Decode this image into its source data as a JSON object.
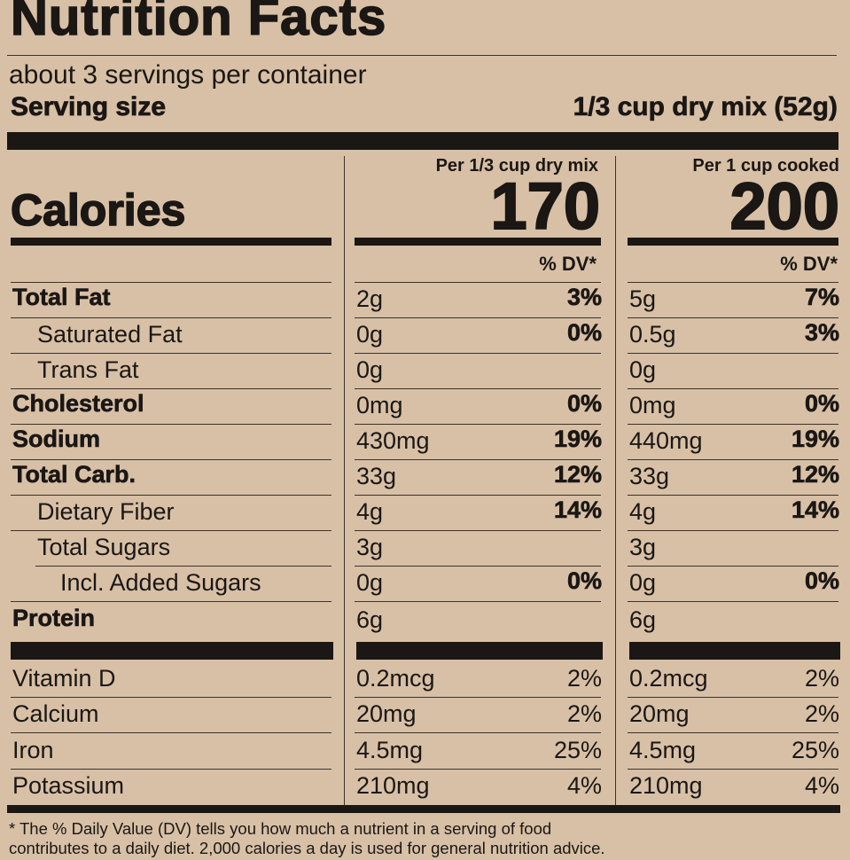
{
  "header": {
    "title": "Nutrition Facts",
    "servings": "about 3 servings per container",
    "serving_size_label": "Serving size",
    "serving_size_value": "1/3 cup dry mix (52g)"
  },
  "columns": {
    "dry_header": "Per 1/3 cup dry mix",
    "cooked_header": "Per 1 cup cooked",
    "calories_label": "Calories",
    "calories_dry": "170",
    "calories_cooked": "200",
    "dv_header": "% DV*"
  },
  "nutrients": [
    {
      "label": "Total Fat",
      "dry_amount": "2g",
      "dry_dv": "3%",
      "cooked_amount": "5g",
      "cooked_dv": "7%"
    },
    {
      "label": "Saturated Fat",
      "dry_amount": "0g",
      "dry_dv": "0%",
      "cooked_amount": "0.5g",
      "cooked_dv": "3%"
    },
    {
      "label": "Trans Fat",
      "dry_amount": "0g",
      "dry_dv": "",
      "cooked_amount": "0g",
      "cooked_dv": ""
    },
    {
      "label": "Cholesterol",
      "dry_amount": "0mg",
      "dry_dv": "0%",
      "cooked_amount": "0mg",
      "cooked_dv": "0%"
    },
    {
      "label": "Sodium",
      "dry_amount": "430mg",
      "dry_dv": "19%",
      "cooked_amount": "440mg",
      "cooked_dv": "19%"
    },
    {
      "label": "Total Carb.",
      "dry_amount": "33g",
      "dry_dv": "12%",
      "cooked_amount": "33g",
      "cooked_dv": "12%"
    },
    {
      "label": "Dietary Fiber",
      "dry_amount": "4g",
      "dry_dv": "14%",
      "cooked_amount": "4g",
      "cooked_dv": "14%"
    },
    {
      "label": "Total Sugars",
      "dry_amount": "3g",
      "dry_dv": "",
      "cooked_amount": "3g",
      "cooked_dv": ""
    },
    {
      "label": "Incl. Added Sugars",
      "dry_amount": "0g",
      "dry_dv": "0%",
      "cooked_amount": "0g",
      "cooked_dv": "0%"
    },
    {
      "label": "Protein",
      "dry_amount": "6g",
      "dry_dv": "",
      "cooked_amount": "6g",
      "cooked_dv": ""
    }
  ],
  "vitamins": [
    {
      "label": "Vitamin D",
      "dry_amount": "0.2mcg",
      "dry_dv": "2%",
      "cooked_amount": "0.2mcg",
      "cooked_dv": "2%"
    },
    {
      "label": "Calcium",
      "dry_amount": "20mg",
      "dry_dv": "2%",
      "cooked_amount": "20mg",
      "cooked_dv": "2%"
    },
    {
      "label": "Iron",
      "dry_amount": "4.5mg",
      "dry_dv": "25%",
      "cooked_amount": "4.5mg",
      "cooked_dv": "25%"
    },
    {
      "label": "Potassium",
      "dry_amount": "210mg",
      "dry_dv": "4%",
      "cooked_amount": "210mg",
      "cooked_dv": "4%"
    }
  ],
  "footnote": {
    "line1": "* The % Daily Value (DV) tells you how much a nutrient in a serving of food",
    "line2": "contributes to a daily diet. 2,000 calories a day is used for general nutrition advice."
  }
}
